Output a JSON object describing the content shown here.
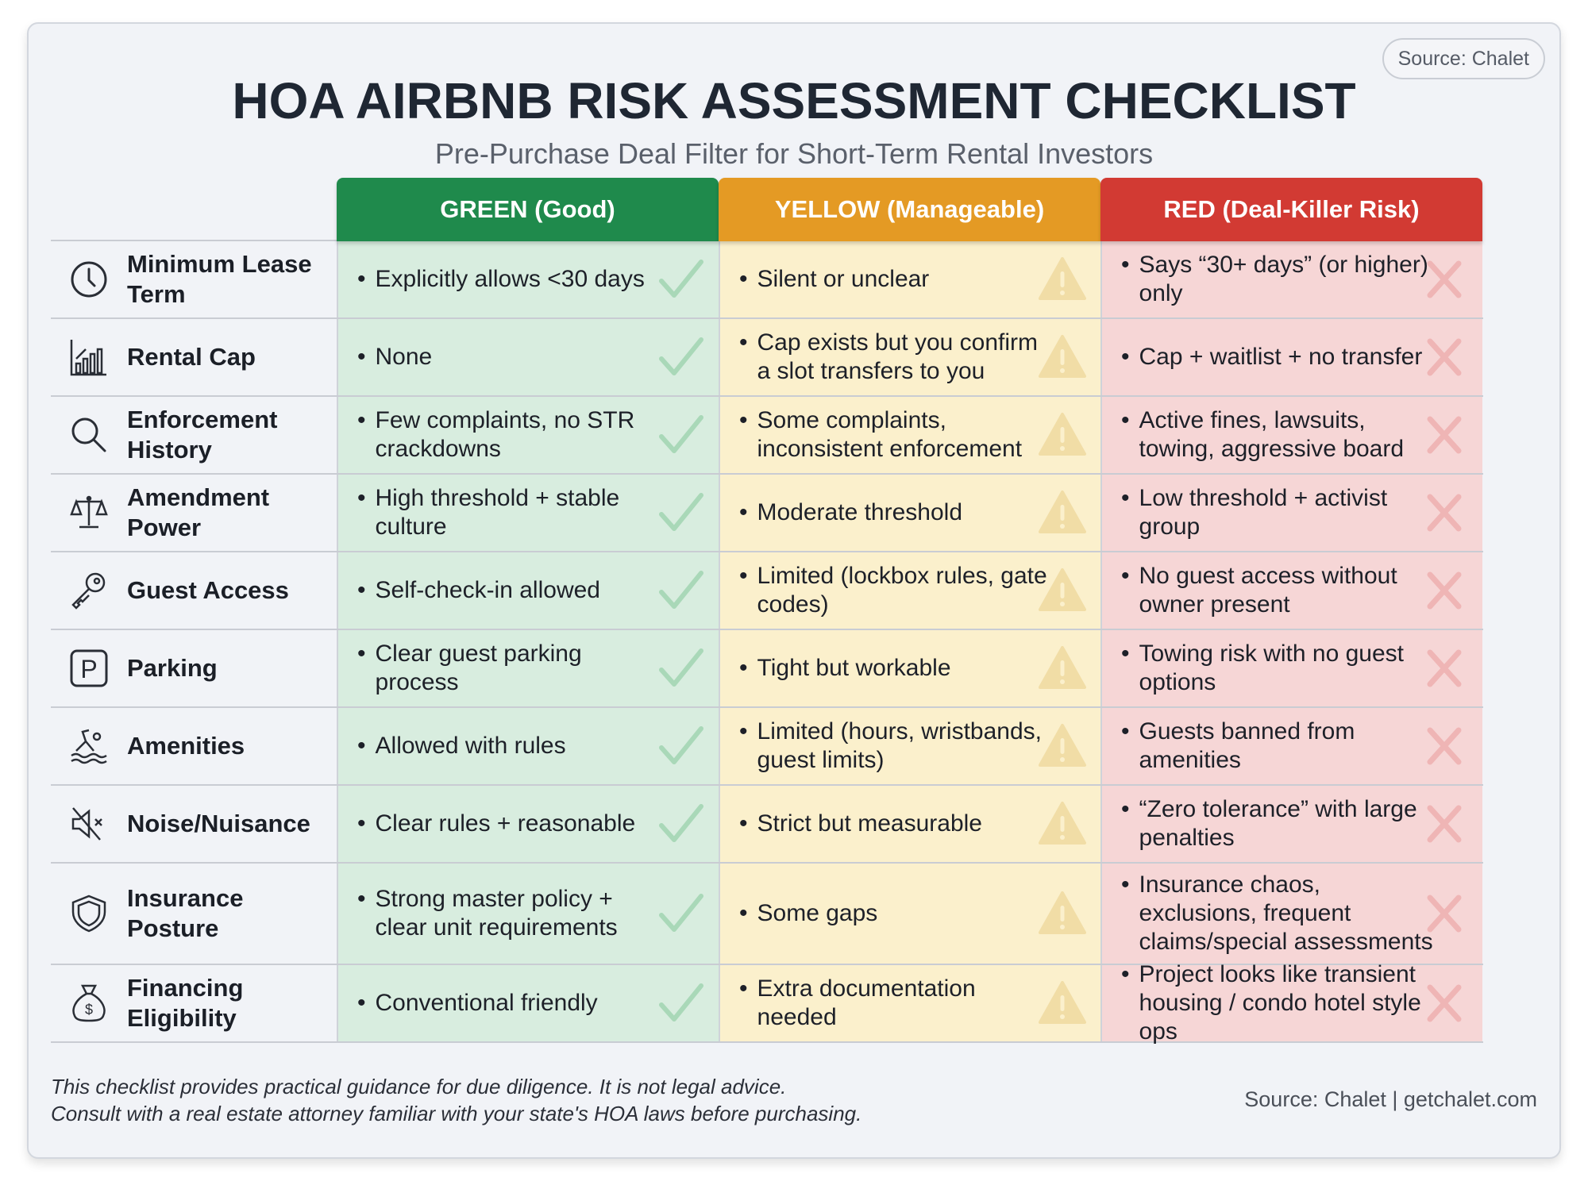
{
  "header": {
    "source_badge": "Source: Chalet",
    "title": "HOA AIRBNB RISK ASSESSMENT CHECKLIST",
    "subtitle": "Pre-Purchase Deal Filter for Short-Term Rental Investors"
  },
  "columns": [
    {
      "label": "GREEN (Good)",
      "color": "#1f8a4c",
      "cell_bg": "#d8eddf",
      "marker": "check-icon"
    },
    {
      "label": "YELLOW (Manageable)",
      "color": "#e49a24",
      "cell_bg": "#fbf0cc",
      "marker": "warning-icon"
    },
    {
      "label": "RED (Deal-Killer Risk)",
      "color": "#d23a33",
      "cell_bg": "#f6d6d6",
      "marker": "x-icon"
    }
  ],
  "rows": [
    {
      "icon": "clock-icon",
      "label": "Minimum Lease Term",
      "green": "Explicitly allows <30 days",
      "yellow": "Silent or unclear",
      "red": "Says “30+ days” (or higher) only"
    },
    {
      "icon": "bar-chart-icon",
      "label": "Rental Cap",
      "green": "None",
      "yellow": "Cap exists but you confirm a slot transfers to you",
      "red": "Cap + waitlist + no transfer"
    },
    {
      "icon": "magnifier-icon",
      "label": "Enforcement History",
      "green": "Few complaints, no STR crackdowns",
      "yellow": "Some complaints, inconsistent enforcement",
      "red": "Active fines, lawsuits, towing, aggressive board"
    },
    {
      "icon": "scales-icon",
      "label": "Amendment Power",
      "green": "High threshold + stable culture",
      "yellow": "Moderate threshold",
      "red": "Low threshold + activist group"
    },
    {
      "icon": "key-icon",
      "label": "Guest Access",
      "green": "Self-check-in allowed",
      "yellow": "Limited (lockbox rules, gate codes)",
      "red": "No guest access without owner present"
    },
    {
      "icon": "parking-icon",
      "label": "Parking",
      "green": "Clear guest parking process",
      "yellow": "Tight but workable",
      "red": "Towing risk with no guest options"
    },
    {
      "icon": "swimmer-icon",
      "label": "Amenities",
      "green": "Allowed with rules",
      "yellow": "Limited (hours, wristbands, guest limits)",
      "red": "Guests banned from amenities"
    },
    {
      "icon": "mute-speaker-icon",
      "label": "Noise/Nuisance",
      "green": "Clear rules + reasonable",
      "yellow": "Strict but measurable",
      "red": "“Zero tolerance” with large penalties"
    },
    {
      "icon": "shield-icon",
      "label": "Insurance Posture",
      "green": "Strong master policy + clear unit requirements",
      "yellow": "Some gaps",
      "red": "Insurance chaos, exclusions, frequent claims/special assessments"
    },
    {
      "icon": "money-bag-icon",
      "label": "Financing Eligibility",
      "green": "Conventional friendly",
      "yellow": "Extra documentation needed",
      "red": "Project looks like transient housing / condo hotel style ops"
    }
  ],
  "footer": {
    "disclaimer_line1": "This checklist provides practical guidance for due diligence. It is not legal advice.",
    "disclaimer_line2": "Consult with a real estate attorney familiar with your state's HOA laws before purchasing.",
    "source": "Source: Chalet | getchalet.com"
  }
}
